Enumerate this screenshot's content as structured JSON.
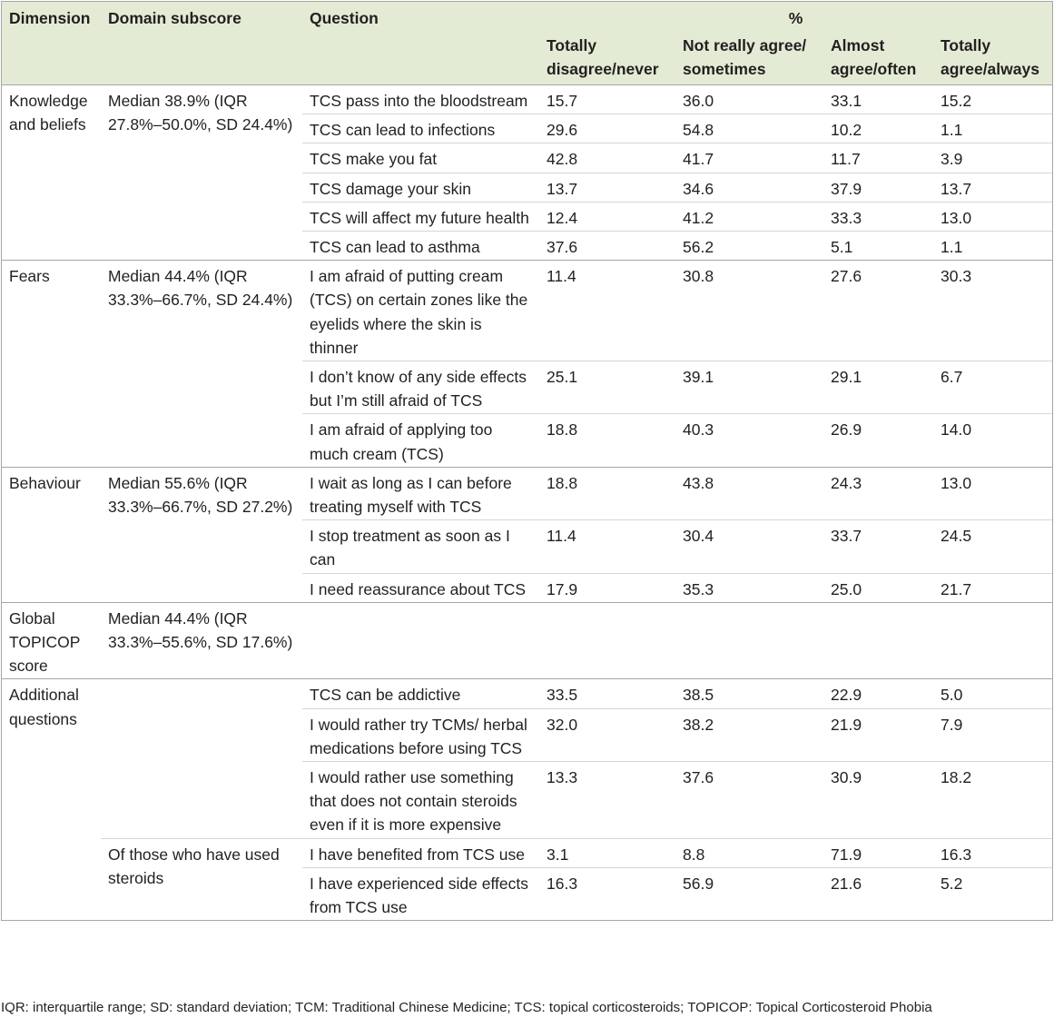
{
  "headers": {
    "dimension": "Dimension",
    "domain_subscore": "Domain subscore",
    "question": "Question",
    "percent": "%",
    "col1": "Totally disagree/never",
    "col2": "Not really agree/ sometimes",
    "col3": "Almost agree/often",
    "col4": "Totally agree/always"
  },
  "groups": {
    "knowledge": {
      "dimension": "Knowledge and beliefs",
      "subscore": "Median 38.9% (IQR 27.8%–50.0%, SD 24.4%)",
      "rows": [
        {
          "q": "TCS pass into the bloodstream",
          "v": [
            "15.7",
            "36.0",
            "33.1",
            "15.2"
          ]
        },
        {
          "q": "TCS can lead to infections",
          "v": [
            "29.6",
            "54.8",
            "10.2",
            "1.1"
          ]
        },
        {
          "q": "TCS make you fat",
          "v": [
            "42.8",
            "41.7",
            "11.7",
            "3.9"
          ]
        },
        {
          "q": "TCS damage your skin",
          "v": [
            "13.7",
            "34.6",
            "37.9",
            "13.7"
          ]
        },
        {
          "q": "TCS will affect my future health",
          "v": [
            "12.4",
            "41.2",
            "33.3",
            "13.0"
          ]
        },
        {
          "q": "TCS can lead to asthma",
          "v": [
            "37.6",
            "56.2",
            "5.1",
            "1.1"
          ]
        }
      ]
    },
    "fears": {
      "dimension": "Fears",
      "subscore": "Median 44.4% (IQR 33.3%–66.7%, SD 24.4%)",
      "rows": [
        {
          "q": "I am afraid of putting cream (TCS) on certain zones like the eyelids where the skin is thinner",
          "v": [
            "11.4",
            "30.8",
            "27.6",
            "30.3"
          ]
        },
        {
          "q": "I don’t know of any side effects but I’m still afraid of TCS",
          "v": [
            "25.1",
            "39.1",
            "29.1",
            "6.7"
          ]
        },
        {
          "q": "I am afraid of applying too much cream (TCS)",
          "v": [
            "18.8",
            "40.3",
            "26.9",
            "14.0"
          ]
        }
      ]
    },
    "behaviour": {
      "dimension": "Behaviour",
      "subscore": "Median 55.6% (IQR 33.3%–66.7%, SD 27.2%)",
      "rows": [
        {
          "q": "I wait as long as I can before treating myself with TCS",
          "v": [
            "18.8",
            "43.8",
            "24.3",
            "13.0"
          ]
        },
        {
          "q": "I stop treatment as soon as I can",
          "v": [
            "11.4",
            "30.4",
            "33.7",
            "24.5"
          ]
        },
        {
          "q": "I need reassurance about TCS",
          "v": [
            "17.9",
            "35.3",
            "25.0",
            "21.7"
          ]
        }
      ]
    },
    "global": {
      "dimension": "Global TOPICOP score",
      "subscore": "Median 44.4% (IQR 33.3%–55.6%, SD 17.6%)"
    },
    "additional": {
      "dimension": "Additional questions",
      "rows": [
        {
          "q": "TCS can be addictive",
          "v": [
            "33.5",
            "38.5",
            "22.9",
            "5.0"
          ]
        },
        {
          "q": "I would rather try TCMs/ herbal medications before using TCS",
          "v": [
            "32.0",
            "38.2",
            "21.9",
            "7.9"
          ]
        },
        {
          "q": "I would rather use something that does not contain steroids even if it is more expensive",
          "v": [
            "13.3",
            "37.6",
            "30.9",
            "18.2"
          ]
        }
      ],
      "used_subscore": "Of those who have used steroids",
      "used_rows": [
        {
          "q": "I have benefited from TCS use",
          "v": [
            "3.1",
            "8.8",
            "71.9",
            "16.3"
          ]
        },
        {
          "q": "I have experienced side effects from TCS use",
          "v": [
            "16.3",
            "56.9",
            "21.6",
            "5.2"
          ]
        }
      ]
    }
  },
  "footnote": "IQR: interquartile range; SD: standard deviation; TCM: Traditional Chinese Medicine; TCS: topical corticosteroids; TOPICOP: Topical Corticosteroid Phobia"
}
